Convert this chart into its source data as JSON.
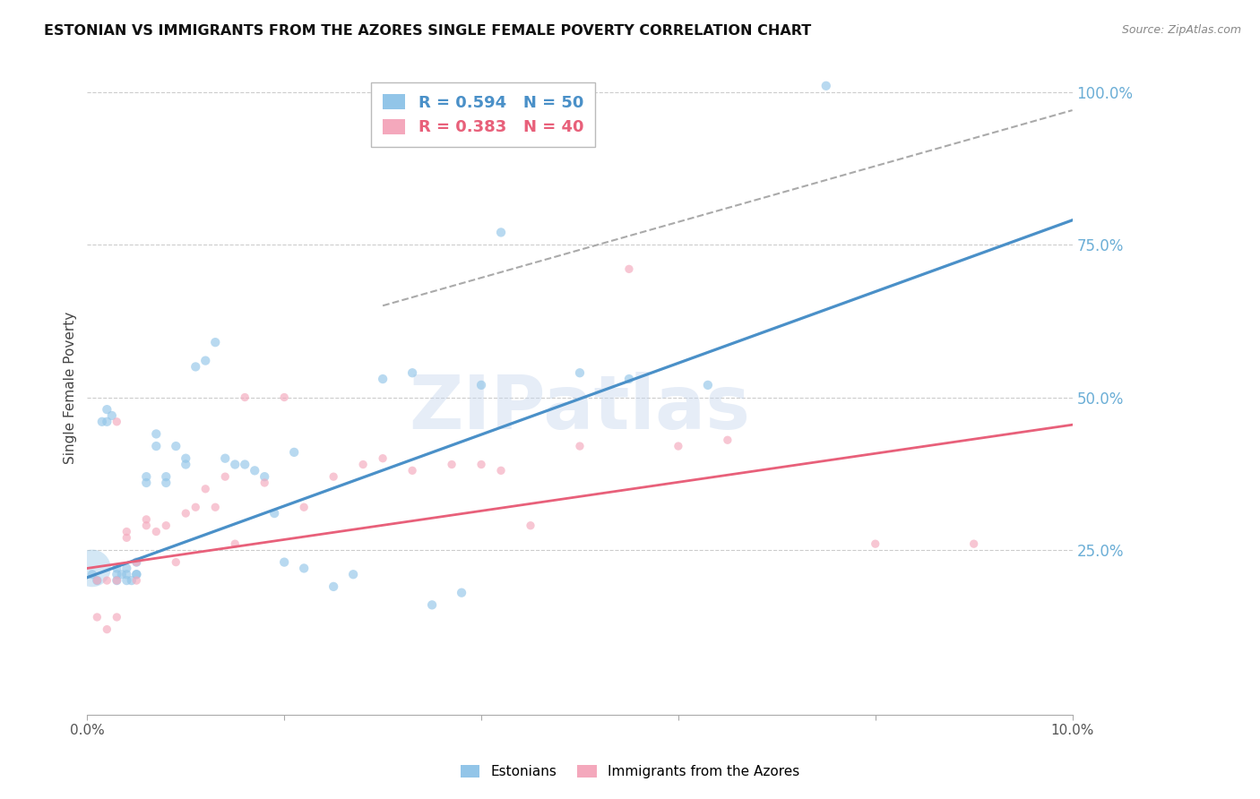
{
  "title": "ESTONIAN VS IMMIGRANTS FROM THE AZORES SINGLE FEMALE POVERTY CORRELATION CHART",
  "source": "Source: ZipAtlas.com",
  "ylabel": "Single Female Poverty",
  "xlim": [
    0.0,
    0.1
  ],
  "ylim": [
    -0.02,
    1.05
  ],
  "yticks_right": [
    0.25,
    0.5,
    0.75,
    1.0
  ],
  "ytick_labels_right": [
    "25.0%",
    "50.0%",
    "75.0%",
    "100.0%"
  ],
  "xtick_positions": [
    0.0,
    0.02,
    0.04,
    0.06,
    0.08,
    0.1
  ],
  "xtick_labels": [
    "0.0%",
    "",
    "",
    "",
    "",
    "10.0%"
  ],
  "blue_R": 0.594,
  "blue_N": 50,
  "pink_R": 0.383,
  "pink_N": 40,
  "blue_color": "#92C5E8",
  "pink_color": "#F4A8BC",
  "blue_line_color": "#4A90C8",
  "pink_line_color": "#E8607A",
  "right_axis_color": "#6BAED6",
  "watermark": "ZIPatlas",
  "watermark_color": "#C8D8EE",
  "blue_line_x": [
    0.0,
    0.1
  ],
  "blue_line_y": [
    0.205,
    0.79
  ],
  "pink_line_x": [
    0.0,
    0.1
  ],
  "pink_line_y": [
    0.22,
    0.455
  ],
  "dash_line_x": [
    0.03,
    0.1
  ],
  "dash_line_y": [
    0.65,
    0.97
  ],
  "blue_scatter_x": [
    0.0005,
    0.001,
    0.0015,
    0.002,
    0.002,
    0.0025,
    0.003,
    0.003,
    0.003,
    0.0035,
    0.004,
    0.004,
    0.004,
    0.0045,
    0.005,
    0.005,
    0.005,
    0.006,
    0.006,
    0.007,
    0.007,
    0.008,
    0.008,
    0.009,
    0.01,
    0.01,
    0.011,
    0.012,
    0.013,
    0.014,
    0.015,
    0.016,
    0.017,
    0.018,
    0.019,
    0.02,
    0.021,
    0.022,
    0.025,
    0.027,
    0.03,
    0.033,
    0.035,
    0.038,
    0.04,
    0.042,
    0.05,
    0.055,
    0.063,
    0.075
  ],
  "blue_scatter_y": [
    0.21,
    0.2,
    0.46,
    0.46,
    0.48,
    0.47,
    0.2,
    0.21,
    0.22,
    0.21,
    0.2,
    0.21,
    0.22,
    0.2,
    0.21,
    0.21,
    0.23,
    0.36,
    0.37,
    0.44,
    0.42,
    0.36,
    0.37,
    0.42,
    0.39,
    0.4,
    0.55,
    0.56,
    0.59,
    0.4,
    0.39,
    0.39,
    0.38,
    0.37,
    0.31,
    0.23,
    0.41,
    0.22,
    0.19,
    0.21,
    0.53,
    0.54,
    0.16,
    0.18,
    0.52,
    0.77,
    0.54,
    0.53,
    0.52,
    1.01
  ],
  "pink_scatter_x": [
    0.001,
    0.001,
    0.002,
    0.002,
    0.003,
    0.003,
    0.003,
    0.004,
    0.004,
    0.005,
    0.005,
    0.006,
    0.006,
    0.007,
    0.008,
    0.009,
    0.01,
    0.011,
    0.012,
    0.013,
    0.014,
    0.015,
    0.016,
    0.018,
    0.02,
    0.022,
    0.025,
    0.028,
    0.03,
    0.033,
    0.037,
    0.04,
    0.042,
    0.045,
    0.05,
    0.055,
    0.06,
    0.065,
    0.08,
    0.09
  ],
  "pink_scatter_y": [
    0.2,
    0.14,
    0.2,
    0.12,
    0.46,
    0.2,
    0.14,
    0.27,
    0.28,
    0.23,
    0.2,
    0.29,
    0.3,
    0.28,
    0.29,
    0.23,
    0.31,
    0.32,
    0.35,
    0.32,
    0.37,
    0.26,
    0.5,
    0.36,
    0.5,
    0.32,
    0.37,
    0.39,
    0.4,
    0.38,
    0.39,
    0.39,
    0.38,
    0.29,
    0.42,
    0.71,
    0.42,
    0.43,
    0.26,
    0.26
  ]
}
